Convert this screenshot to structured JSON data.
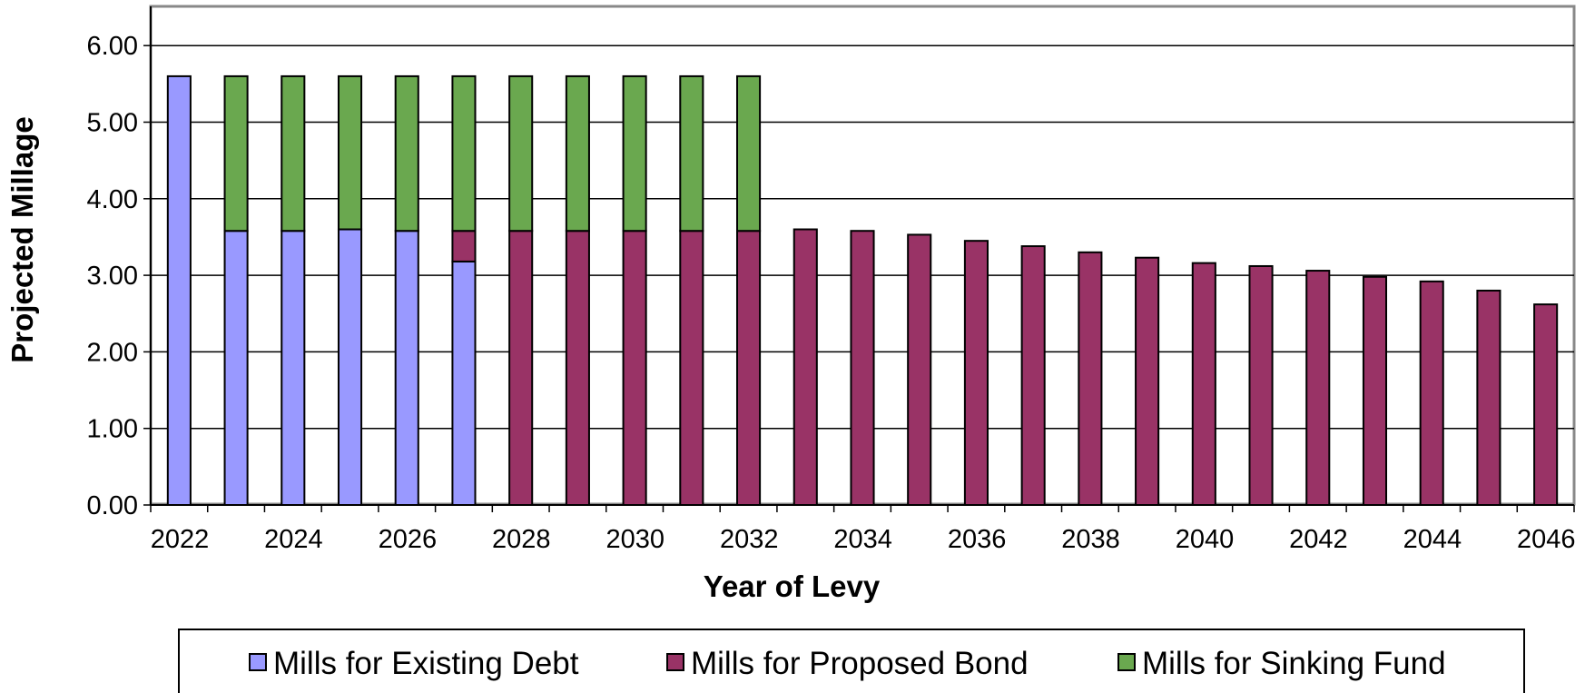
{
  "chart_data": {
    "type": "bar",
    "stacked": true,
    "title": "",
    "xlabel": "Year of Levy",
    "ylabel": "Projected Millage",
    "ylim": [
      0,
      6.5
    ],
    "yticks": [
      "0.00",
      "1.00",
      "2.00",
      "3.00",
      "4.00",
      "5.00",
      "6.00"
    ],
    "xtick_labels": [
      "2022",
      "2024",
      "2026",
      "2028",
      "2030",
      "2032",
      "2034",
      "2036",
      "2038",
      "2040",
      "2042",
      "2044",
      "2046"
    ],
    "categories": [
      "2022",
      "2023",
      "2024",
      "2025",
      "2026",
      "2027",
      "2028",
      "2029",
      "2030",
      "2031",
      "2032",
      "2033",
      "2034",
      "2035",
      "2036",
      "2037",
      "2038",
      "2039",
      "2040",
      "2041",
      "2042",
      "2043",
      "2044",
      "2045",
      "2046"
    ],
    "series": [
      {
        "name": "Mills for Existing Debt",
        "color": "#9999ff",
        "values": [
          5.6,
          3.58,
          3.58,
          3.6,
          3.58,
          3.18,
          0,
          0,
          0,
          0,
          0,
          0,
          0,
          0,
          0,
          0,
          0,
          0,
          0,
          0,
          0,
          0,
          0,
          0,
          0
        ]
      },
      {
        "name": "Mills for Proposed Bond",
        "color": "#993366",
        "values": [
          0,
          0,
          0,
          0,
          0,
          0.4,
          3.58,
          3.58,
          3.58,
          3.58,
          3.58,
          3.6,
          3.58,
          3.53,
          3.45,
          3.38,
          3.3,
          3.23,
          3.16,
          3.12,
          3.06,
          2.98,
          2.92,
          2.8,
          2.62
        ]
      },
      {
        "name": "Mills for Sinking Fund",
        "color": "#6aa84f",
        "values": [
          0,
          2.02,
          2.02,
          2.0,
          2.02,
          2.02,
          2.02,
          2.02,
          2.02,
          2.02,
          2.02,
          0,
          0,
          0,
          0,
          0,
          0,
          0,
          0,
          0,
          0,
          0,
          0,
          0,
          0
        ]
      }
    ],
    "grid": true,
    "legend_position": "bottom"
  }
}
